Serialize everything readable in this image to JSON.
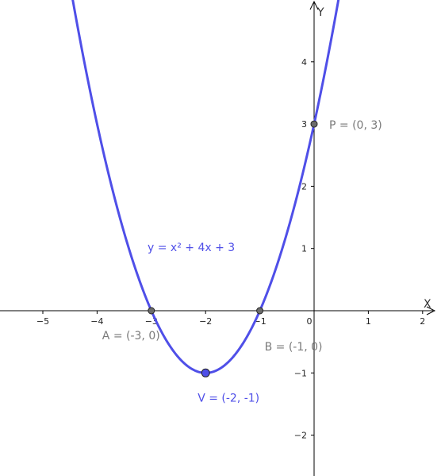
{
  "chart_data": {
    "type": "line",
    "x_axis": {
      "label": "X",
      "range": [
        -5.8,
        2.3
      ],
      "ticks": [
        -5,
        -4,
        -3,
        -2,
        -1,
        0,
        1,
        2
      ]
    },
    "y_axis": {
      "label": "Y",
      "range": [
        -2.6,
        4.95
      ],
      "ticks": [
        -2,
        -1,
        1,
        2,
        3,
        4
      ]
    },
    "function": {
      "label": "y = x² + 4x + 3",
      "a": 1,
      "b": 4,
      "c": 3,
      "x_range": [
        -4.5,
        0.45
      ]
    },
    "points": [
      {
        "id": "A",
        "label": "A = (-3, 0)",
        "x": -3,
        "y": 0
      },
      {
        "id": "B",
        "label": "B = (-1, 0)",
        "x": -1,
        "y": 0
      },
      {
        "id": "P",
        "label": "P = (0, 3)",
        "x": 0,
        "y": 3
      },
      {
        "id": "V",
        "label": "V = (-2, -1)",
        "x": -2,
        "y": -1
      }
    ],
    "grid": false
  },
  "colors": {
    "curve": "#4f4fe8",
    "axis": "#000000",
    "point_gray": "#6b6b6b",
    "label_gray": "#7a7a7a",
    "vertex_fill": "#4f4fe8",
    "vertex_label": "#4f4fe8"
  }
}
